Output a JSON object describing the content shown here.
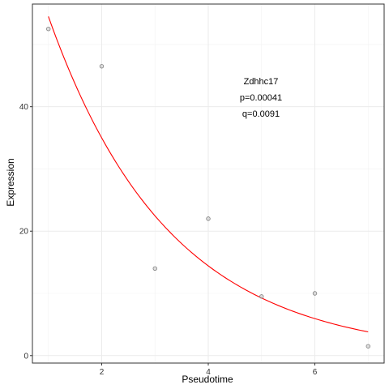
{
  "chart_data": {
    "type": "scatter",
    "title": "",
    "xlabel": "Pseudotime",
    "ylabel": "Expression",
    "xlim": [
      0.7,
      7.3
    ],
    "ylim": [
      -1.2,
      56.5
    ],
    "x_ticks": [
      2,
      4,
      6
    ],
    "y_ticks": [
      0,
      20,
      40
    ],
    "grid": true,
    "points": [
      {
        "x": 1,
        "y": 52.5
      },
      {
        "x": 2,
        "y": 46.5
      },
      {
        "x": 3,
        "y": 14.0
      },
      {
        "x": 4,
        "y": 22.0
      },
      {
        "x": 5,
        "y": 9.5
      },
      {
        "x": 6,
        "y": 10.0
      },
      {
        "x": 7,
        "y": 1.5
      }
    ],
    "fit": {
      "form": "exponential",
      "a": 54.5,
      "b": 0.4432,
      "x_range": [
        1,
        7
      ],
      "color": "#ff0000"
    },
    "point_color": "#7f7f7f",
    "annotations": [
      "Zdhhc17",
      "p=0.00041",
      "q=0.0091"
    ]
  }
}
